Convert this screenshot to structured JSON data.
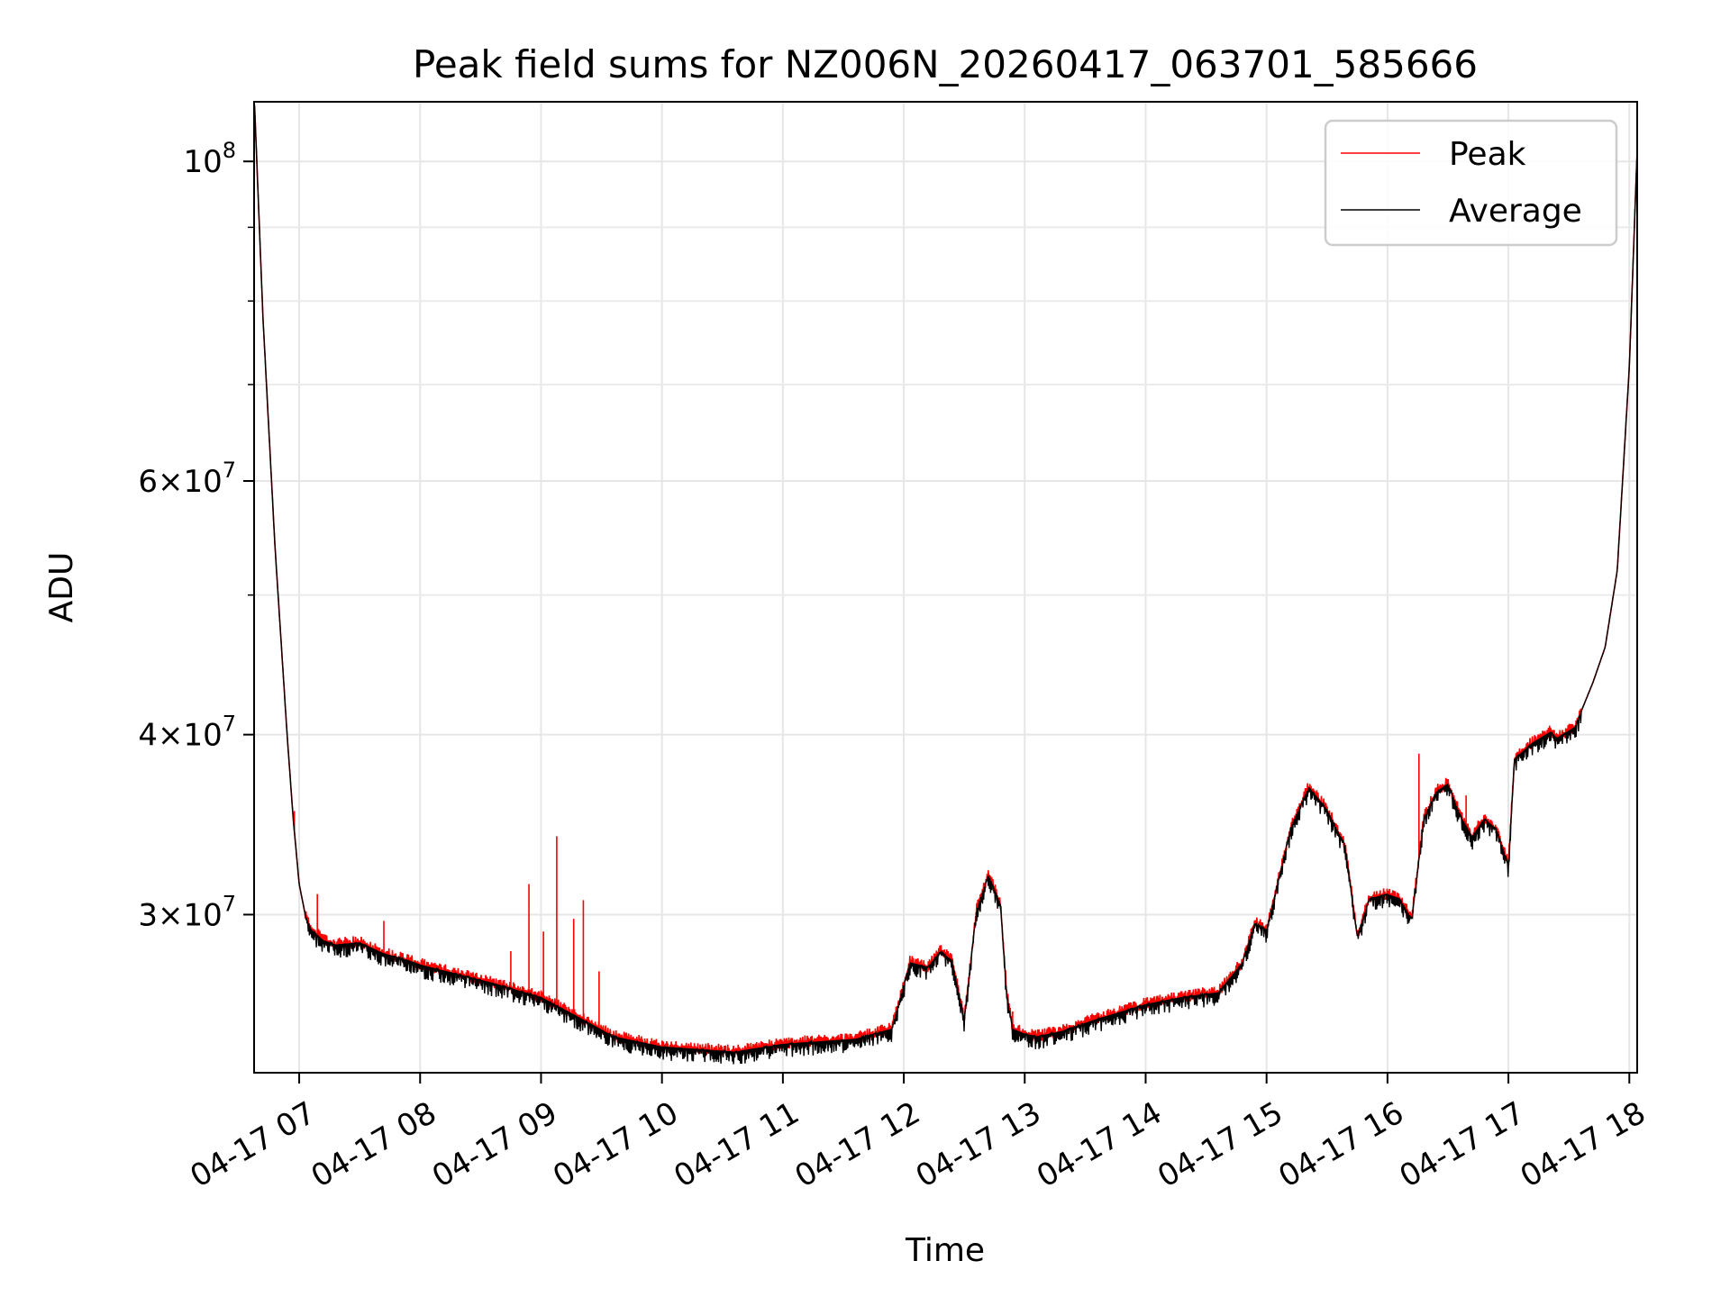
{
  "chart_data": {
    "type": "line",
    "title": "Peak field sums for NZ006N_20260417_063701_585666",
    "xlabel": "Time",
    "ylabel": "ADU",
    "y_scale": "log",
    "ylim": [
      23300000,
      110000000
    ],
    "xlim_hours": [
      6.627,
      18.065
    ],
    "x_ticks": [
      {
        "hour": 7,
        "label": "04-17 07"
      },
      {
        "hour": 8,
        "label": "04-17 08"
      },
      {
        "hour": 9,
        "label": "04-17 09"
      },
      {
        "hour": 10,
        "label": "04-17 10"
      },
      {
        "hour": 11,
        "label": "04-17 11"
      },
      {
        "hour": 12,
        "label": "04-17 12"
      },
      {
        "hour": 13,
        "label": "04-17 13"
      },
      {
        "hour": 14,
        "label": "04-17 14"
      },
      {
        "hour": 15,
        "label": "04-17 15"
      },
      {
        "hour": 16,
        "label": "04-17 16"
      },
      {
        "hour": 17,
        "label": "04-17 17"
      },
      {
        "hour": 18,
        "label": "04-17 18"
      }
    ],
    "y_major_ticks": [
      {
        "value": 30000000,
        "base": "3×10",
        "exp": "7"
      },
      {
        "value": 40000000,
        "base": "4×10",
        "exp": "7"
      },
      {
        "value": 60000000,
        "base": "6×10",
        "exp": "7"
      },
      {
        "value": 100000000,
        "base": "10",
        "exp": "8"
      }
    ],
    "y_minor_ticks": [
      50000000,
      70000000,
      80000000,
      90000000
    ],
    "grid": true,
    "legend": {
      "position": "top-right",
      "entries": [
        {
          "label": "Peak",
          "color": "#ff0000"
        },
        {
          "label": "Average",
          "color": "#000000"
        }
      ]
    },
    "series": [
      {
        "name": "Average",
        "color": "#000000",
        "hours": [
          6.63,
          6.7,
          6.8,
          6.9,
          6.95,
          7.0,
          7.05,
          7.1,
          7.2,
          7.3,
          7.5,
          7.7,
          7.9,
          8.0,
          8.3,
          8.6,
          9.0,
          9.3,
          9.6,
          10.0,
          10.3,
          10.6,
          11.0,
          11.3,
          11.6,
          11.9,
          12.05,
          12.2,
          12.3,
          12.4,
          12.5,
          12.6,
          12.7,
          12.8,
          12.85,
          12.9,
          13.0,
          13.1,
          13.3,
          13.6,
          14.0,
          14.3,
          14.6,
          14.8,
          14.9,
          15.0,
          15.2,
          15.35,
          15.5,
          15.65,
          15.75,
          15.85,
          16.0,
          16.1,
          16.2,
          16.3,
          16.4,
          16.5,
          16.6,
          16.7,
          16.8,
          16.9,
          17.0,
          17.05,
          17.2,
          17.35,
          17.4,
          17.55,
          17.7,
          17.8,
          17.9,
          18.0,
          18.065
        ],
        "values": [
          110000000,
          78000000,
          54000000,
          40000000,
          35000000,
          31500000,
          30000000,
          29300000,
          28800000,
          28600000,
          28700000,
          28200000,
          27900000,
          27700000,
          27300000,
          26900000,
          26300000,
          25500000,
          24700000,
          24300000,
          24200000,
          24100000,
          24400000,
          24500000,
          24600000,
          25000000,
          27800000,
          27600000,
          28300000,
          27900000,
          25400000,
          30200000,
          32000000,
          30500000,
          26500000,
          25000000,
          24800000,
          24700000,
          24900000,
          25400000,
          26000000,
          26300000,
          26500000,
          27800000,
          29600000,
          29300000,
          34500000,
          36800000,
          35500000,
          33500000,
          29000000,
          30800000,
          31000000,
          30800000,
          29800000,
          35000000,
          36500000,
          37000000,
          35200000,
          34000000,
          35000000,
          34400000,
          32500000,
          38500000,
          39500000,
          40200000,
          39800000,
          40500000,
          43500000,
          46000000,
          52000000,
          72000000,
          102000000
        ]
      },
      {
        "name": "Peak",
        "color": "#ff0000",
        "spikes": [
          {
            "hour": 6.96,
            "value": 35400000
          },
          {
            "hour": 7.15,
            "value": 31000000
          },
          {
            "hour": 7.7,
            "value": 29700000
          },
          {
            "hour": 8.75,
            "value": 28300000
          },
          {
            "hour": 8.9,
            "value": 31500000
          },
          {
            "hour": 9.02,
            "value": 29200000
          },
          {
            "hour": 9.13,
            "value": 34000000
          },
          {
            "hour": 9.27,
            "value": 29800000
          },
          {
            "hour": 9.35,
            "value": 30700000
          },
          {
            "hour": 9.48,
            "value": 27400000
          },
          {
            "hour": 12.9,
            "value": 25700000
          },
          {
            "hour": 15.25,
            "value": 35500000
          },
          {
            "hour": 16.26,
            "value": 38800000
          },
          {
            "hour": 16.65,
            "value": 36300000
          }
        ]
      }
    ]
  }
}
